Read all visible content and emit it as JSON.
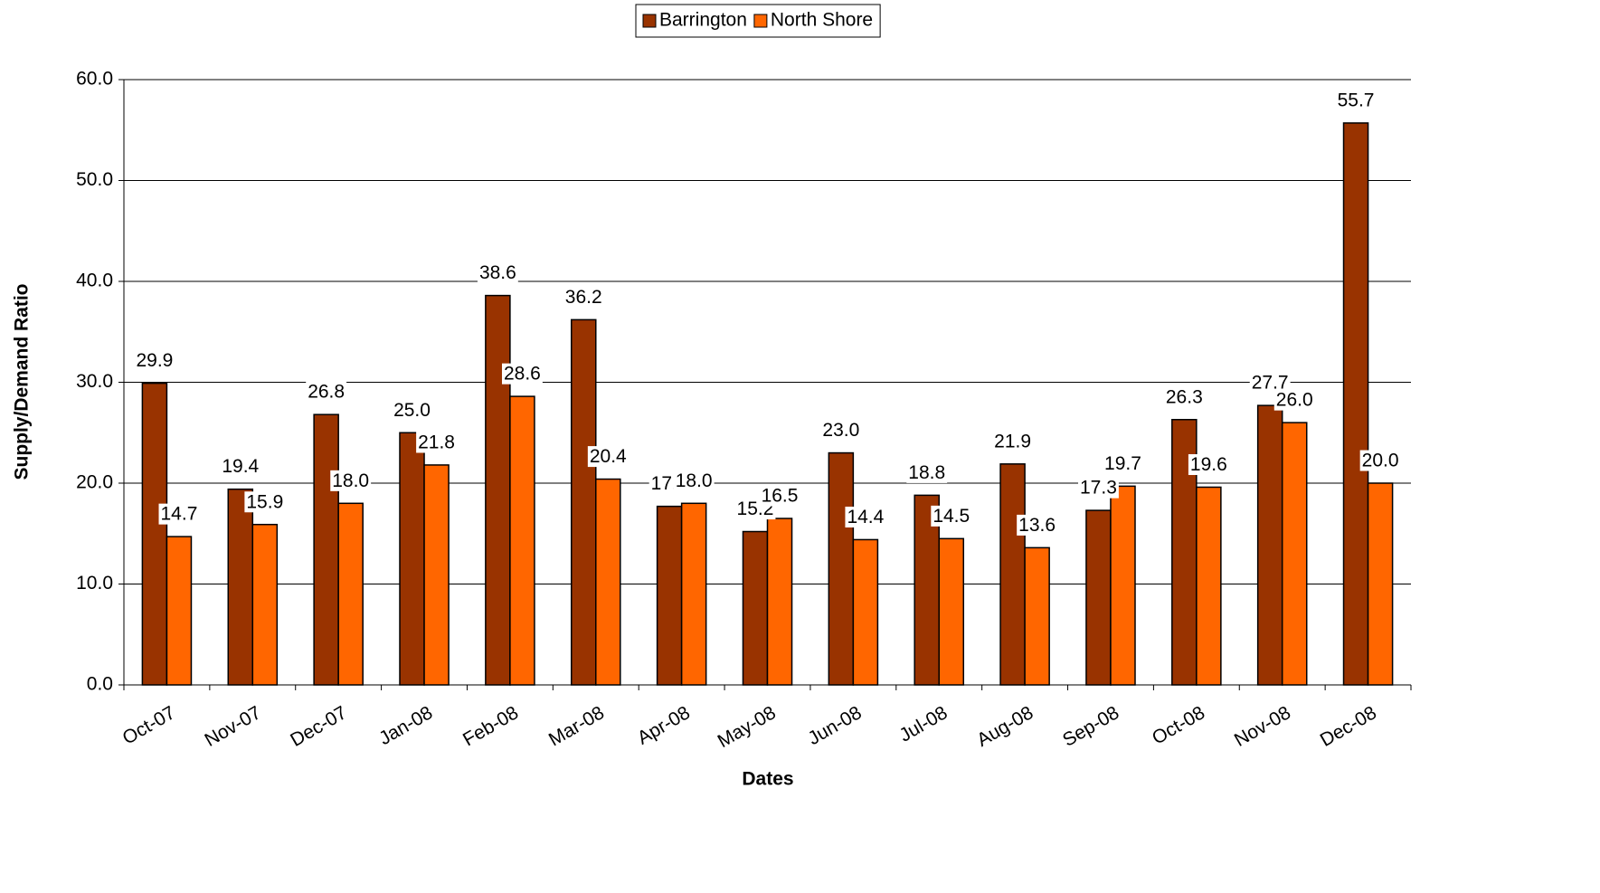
{
  "chart_data": {
    "type": "bar",
    "x_label": "Dates",
    "y_label": "Supply/Demand Ratio",
    "categories": [
      "Oct-07",
      "Nov-07",
      "Dec-07",
      "Jan-08",
      "Feb-08",
      "Mar-08",
      "Apr-08",
      "May-08",
      "Jun-08",
      "Jul-08",
      "Aug-08",
      "Sep-08",
      "Oct-08",
      "Nov-08",
      "Dec-08"
    ],
    "series": [
      {
        "name": "Barrington",
        "color": "#993300",
        "values": [
          29.9,
          19.4,
          26.8,
          25.0,
          38.6,
          36.2,
          17.7,
          15.2,
          23.0,
          18.8,
          21.9,
          17.3,
          26.3,
          27.7,
          55.7
        ],
        "value_labels": [
          "29.9",
          "19.4",
          "26.8",
          "25.0",
          "38.6",
          "36.2",
          "17.7",
          "15.2",
          "23.0",
          "18.8",
          "21.9",
          "17.3",
          "26.3",
          "27.7",
          "55.7"
        ]
      },
      {
        "name": "North Shore",
        "color": "#FF6600",
        "values": [
          14.7,
          15.9,
          18.0,
          21.8,
          28.6,
          20.4,
          18.0,
          16.5,
          14.4,
          14.5,
          13.6,
          19.7,
          19.6,
          26.0,
          20.0
        ],
        "value_labels": [
          "14.7",
          "15.9",
          "18.0",
          "21.8",
          "28.6",
          "20.4",
          "18.0",
          "16.5",
          "14.4",
          "14.5",
          "13.6",
          "19.7",
          "19.6",
          "26.0",
          "20.0"
        ]
      }
    ],
    "ylim": [
      0,
      60
    ],
    "yticks": [
      {
        "value": 0,
        "label": "0.0"
      },
      {
        "value": 10,
        "label": "10.0"
      },
      {
        "value": 20,
        "label": "20.0"
      },
      {
        "value": 30,
        "label": "30.0"
      },
      {
        "value": 40,
        "label": "40.0"
      },
      {
        "value": 50,
        "label": "50.0"
      },
      {
        "value": 60,
        "label": "60.0"
      }
    ],
    "grid": true,
    "legend": "top"
  }
}
